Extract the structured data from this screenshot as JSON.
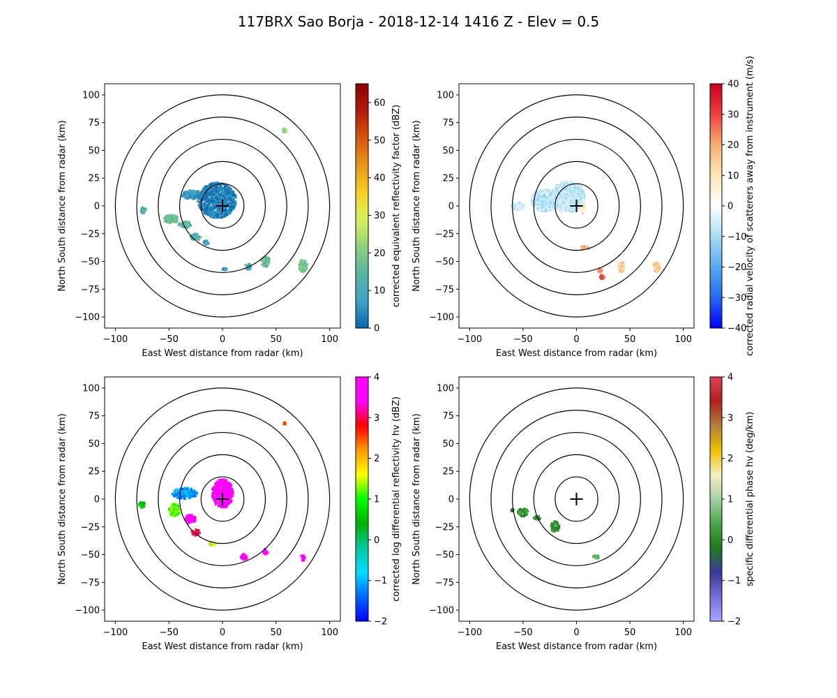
{
  "figure": {
    "title": "117BRX Sao Borja - 2018-12-14 1416 Z -  Elev = 0.5"
  },
  "chart_data": [
    {
      "type": "scatter",
      "id": "reflectivity",
      "xlabel": "East West distance from radar (km)",
      "ylabel": "North South distance from radar (km)",
      "xlim": [
        -110,
        110
      ],
      "ylim": [
        -110,
        110
      ],
      "xticks": [
        -100,
        -50,
        0,
        50,
        100
      ],
      "yticks": [
        -100,
        -75,
        -50,
        -25,
        0,
        25,
        50,
        75,
        100
      ],
      "range_rings_km": [
        20,
        40,
        60,
        80,
        100
      ],
      "colorbar": {
        "label": "corrected equivalent reflectivity factor (dBZ)",
        "range": [
          0,
          65
        ],
        "ticks": [
          0,
          10,
          20,
          30,
          40,
          50,
          60
        ],
        "colors": [
          "#0868ac",
          "#43a2ca",
          "#5ab4a0",
          "#8fd17a",
          "#d9f05e",
          "#f5d020",
          "#e8961a",
          "#d6560f",
          "#b31b0b",
          "#8b0000"
        ]
      },
      "echoes": [
        {
          "x": -5,
          "y": 5,
          "rx": 18,
          "ry": 16,
          "value": 3
        },
        {
          "x": -28,
          "y": 10,
          "rx": 10,
          "ry": 4,
          "value": 6
        },
        {
          "x": -48,
          "y": -12,
          "rx": 7,
          "ry": 4,
          "value": 16
        },
        {
          "x": -35,
          "y": -17,
          "rx": 6,
          "ry": 3,
          "value": 14
        },
        {
          "x": -25,
          "y": -28,
          "rx": 5,
          "ry": 3,
          "value": 12
        },
        {
          "x": -74,
          "y": -4,
          "rx": 3,
          "ry": 3,
          "value": 14
        },
        {
          "x": 40,
          "y": -50,
          "rx": 4,
          "ry": 5,
          "value": 16
        },
        {
          "x": 75,
          "y": -54,
          "rx": 4,
          "ry": 6,
          "value": 18
        },
        {
          "x": 58,
          "y": 68,
          "rx": 2,
          "ry": 2,
          "value": 24
        },
        {
          "x": 24,
          "y": -55,
          "rx": 3,
          "ry": 3,
          "value": 10
        },
        {
          "x": 2,
          "y": -57,
          "rx": 2,
          "ry": 1,
          "value": 6
        },
        {
          "x": -15,
          "y": -33,
          "rx": 3,
          "ry": 2,
          "value": 8
        }
      ]
    },
    {
      "type": "scatter",
      "id": "velocity",
      "xlabel": "East West distance from radar (km)",
      "ylabel": "North South distance from radar (km)",
      "xlim": [
        -110,
        110
      ],
      "ylim": [
        -110,
        110
      ],
      "xticks": [
        -100,
        -50,
        0,
        50,
        100
      ],
      "yticks": [
        -100,
        -75,
        -50,
        -25,
        0,
        25,
        50,
        75,
        100
      ],
      "range_rings_km": [
        20,
        40,
        60,
        80,
        100
      ],
      "colorbar": {
        "label": "corrected radial velocity of scatterers away from instrument (m/s)",
        "range": [
          -40,
          40
        ],
        "ticks": [
          -40,
          -30,
          -20,
          -10,
          0,
          10,
          20,
          30,
          40
        ],
        "colors": [
          "#0000ff",
          "#2868f0",
          "#58a8f0",
          "#a8ddf5",
          "#ffffff",
          "#fde7b6",
          "#f5b070",
          "#f04040",
          "#c8001e"
        ]
      },
      "echoes": [
        {
          "x": -8,
          "y": 8,
          "rx": 16,
          "ry": 14,
          "value": -7
        },
        {
          "x": -30,
          "y": 5,
          "rx": 12,
          "ry": 10,
          "value": -8
        },
        {
          "x": -55,
          "y": 0,
          "rx": 6,
          "ry": 4,
          "value": -6
        },
        {
          "x": 42,
          "y": -55,
          "rx": 3,
          "ry": 5,
          "value": 14
        },
        {
          "x": 75,
          "y": -55,
          "rx": 3,
          "ry": 5,
          "value": 15
        },
        {
          "x": 24,
          "y": -64,
          "rx": 2,
          "ry": 2,
          "value": 30
        },
        {
          "x": 22,
          "y": -58,
          "rx": 2,
          "ry": 2,
          "value": 25
        },
        {
          "x": 8,
          "y": -38,
          "rx": 4,
          "ry": 2,
          "value": 18
        },
        {
          "x": 6,
          "y": -3,
          "rx": 2,
          "ry": 4,
          "value": 10
        }
      ]
    },
    {
      "type": "scatter",
      "id": "zdr",
      "xlabel": "East West distance from radar (km)",
      "ylabel": "North South distance from radar (km)",
      "xlim": [
        -110,
        110
      ],
      "ylim": [
        -110,
        110
      ],
      "xticks": [
        -100,
        -50,
        0,
        50,
        100
      ],
      "yticks": [
        -100,
        -75,
        -50,
        -25,
        0,
        25,
        50,
        75,
        100
      ],
      "range_rings_km": [
        20,
        40,
        60,
        80,
        100
      ],
      "colorbar": {
        "label": "corrected log differential reflectivity hv (dBZ)",
        "range": [
          -2,
          4
        ],
        "ticks": [
          -2,
          -1,
          0,
          1,
          2,
          3,
          4
        ],
        "colors": [
          "#0000ff",
          "#0066ff",
          "#00ddff",
          "#00c8a0",
          "#00b000",
          "#00ff00",
          "#ffff00",
          "#ff9900",
          "#ff0000",
          "#ff00ff",
          "#ff00ff"
        ]
      },
      "echoes": [
        {
          "x": 0,
          "y": 5,
          "rx": 10,
          "ry": 13,
          "value": 3.9
        },
        {
          "x": -35,
          "y": 5,
          "rx": 12,
          "ry": 5,
          "value": -1.2
        },
        {
          "x": -45,
          "y": -10,
          "rx": 5,
          "ry": 6,
          "value": 1.2
        },
        {
          "x": -30,
          "y": -18,
          "rx": 5,
          "ry": 4,
          "value": 3.6
        },
        {
          "x": -25,
          "y": -30,
          "rx": 4,
          "ry": 3,
          "value": 3.0
        },
        {
          "x": -75,
          "y": -5,
          "rx": 3,
          "ry": 3,
          "value": 0.6
        },
        {
          "x": 20,
          "y": -52,
          "rx": 3,
          "ry": 3,
          "value": 3.9
        },
        {
          "x": 40,
          "y": -48,
          "rx": 2,
          "ry": 3,
          "value": 3.9
        },
        {
          "x": 75,
          "y": -53,
          "rx": 2,
          "ry": 3,
          "value": 3.9
        },
        {
          "x": 58,
          "y": 68,
          "rx": 1,
          "ry": 1,
          "value": 2.6
        },
        {
          "x": -10,
          "y": -40,
          "rx": 3,
          "ry": 2,
          "value": 1.5
        }
      ]
    },
    {
      "type": "scatter",
      "id": "kdp",
      "xlabel": "East West distance from radar (km)",
      "ylabel": "North South distance from radar (km)",
      "xlim": [
        -110,
        110
      ],
      "ylim": [
        -110,
        110
      ],
      "xticks": [
        -100,
        -50,
        0,
        50,
        100
      ],
      "yticks": [
        -100,
        -75,
        -50,
        -25,
        0,
        25,
        50,
        75,
        100
      ],
      "range_rings_km": [
        20,
        40,
        60,
        80,
        100
      ],
      "colorbar": {
        "label": "specific differential phase hv (deg/km)",
        "range": [
          -2,
          4
        ],
        "ticks": [
          -2,
          -1,
          0,
          1,
          2,
          3,
          4
        ],
        "colors": [
          "#a8a8ff",
          "#7070d8",
          "#3a3a9a",
          "#1e7a1e",
          "#4aa84a",
          "#a8d0a8",
          "#f5f0c0",
          "#f0c000",
          "#b08040",
          "#b02020",
          "#e04050"
        ]
      },
      "echoes": [
        {
          "x": -50,
          "y": -12,
          "rx": 5,
          "ry": 4,
          "value": 0.1
        },
        {
          "x": -37,
          "y": -17,
          "rx": 3,
          "ry": 2,
          "value": 0.1
        },
        {
          "x": -20,
          "y": -25,
          "rx": 4,
          "ry": 5,
          "value": 0.1
        },
        {
          "x": -60,
          "y": -10,
          "rx": 1,
          "ry": 1,
          "value": -0.1
        },
        {
          "x": 18,
          "y": -52,
          "rx": 3,
          "ry": 2,
          "value": 0.5
        }
      ]
    }
  ]
}
